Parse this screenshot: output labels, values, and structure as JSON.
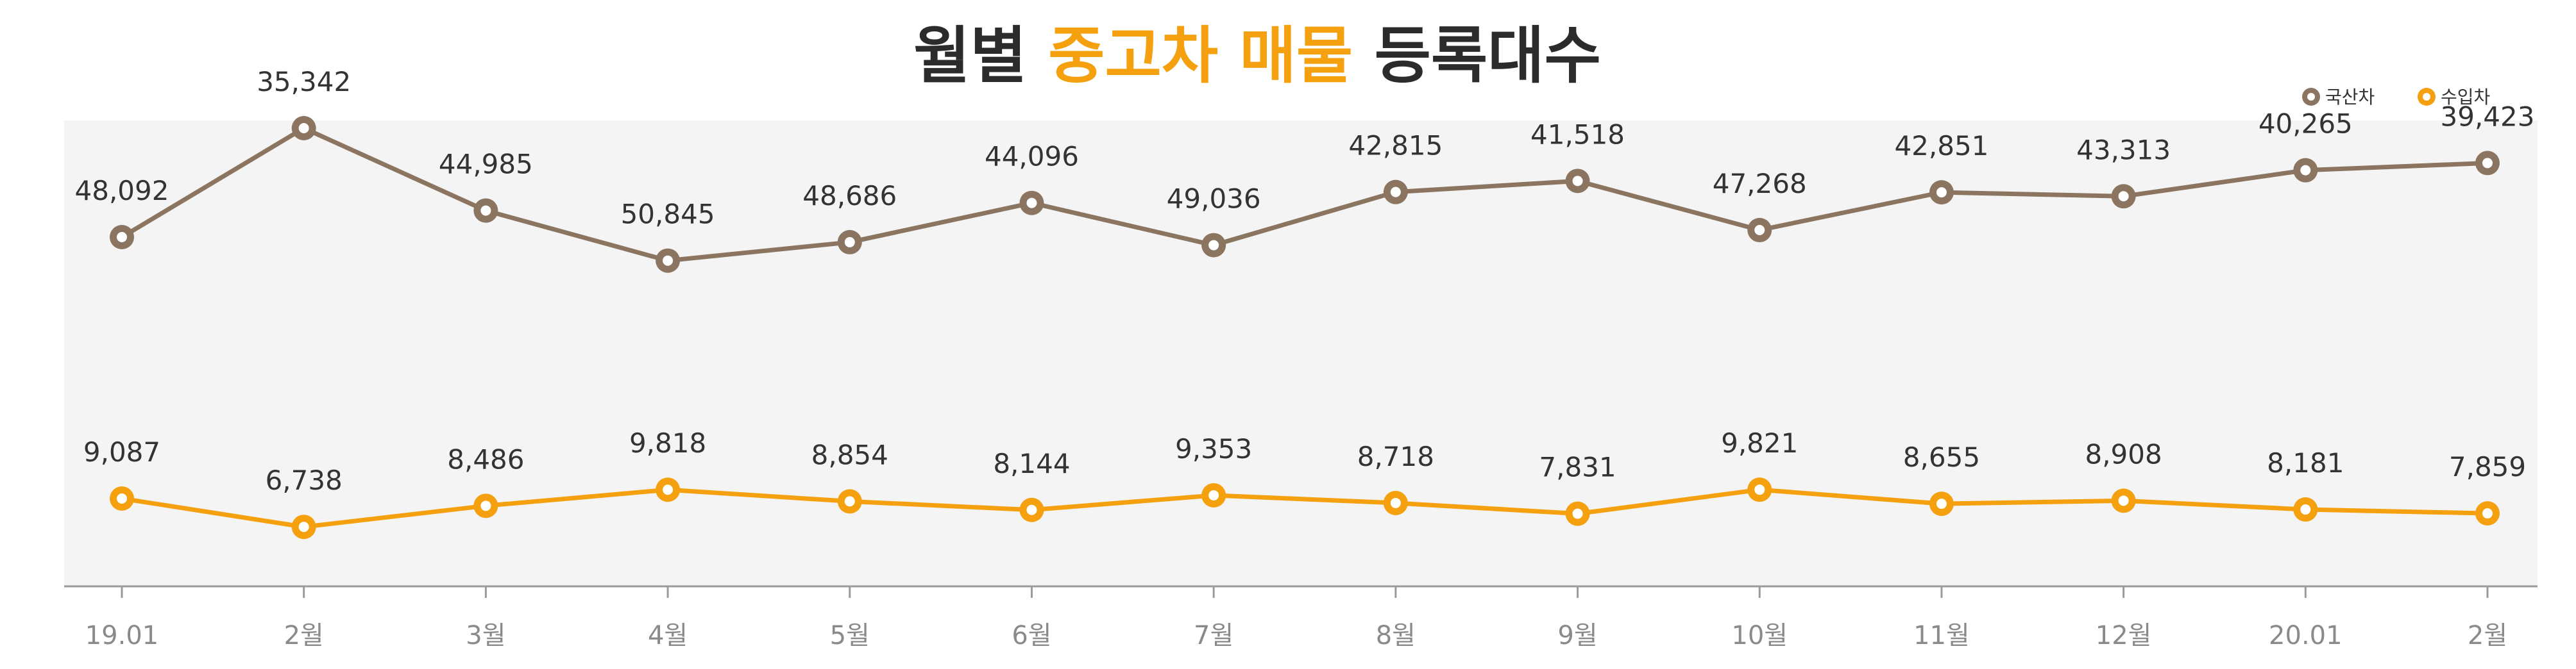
{
  "title": {
    "part1": "월별 ",
    "accent": "중고차 매물",
    "part2": " 등록대수"
  },
  "colors": {
    "domestic": "#8b7560",
    "imported": "#f5a00f",
    "plot_bg": "#f4f4f4",
    "title_accent": "#f5a00f"
  },
  "chart_data": {
    "type": "line",
    "title": "월별 중고차 매물 등록대수",
    "categories": [
      "19.01",
      "2월",
      "3월",
      "4월",
      "5월",
      "6월",
      "7월",
      "8월",
      "9월",
      "10월",
      "11월",
      "12월",
      "20.01",
      "2월"
    ],
    "series": [
      {
        "name": "국산차",
        "values": [
          48092,
          35342,
          44985,
          50845,
          48686,
          44096,
          49036,
          42815,
          41518,
          47268,
          42851,
          43313,
          40265,
          39423
        ]
      },
      {
        "name": "수입차",
        "values": [
          9087,
          6738,
          8486,
          9818,
          8854,
          8144,
          9353,
          8718,
          7831,
          9821,
          8655,
          8908,
          8181,
          7859
        ]
      }
    ],
    "xlabel": "",
    "ylabel": "",
    "grid": false,
    "legend": "top-right"
  }
}
